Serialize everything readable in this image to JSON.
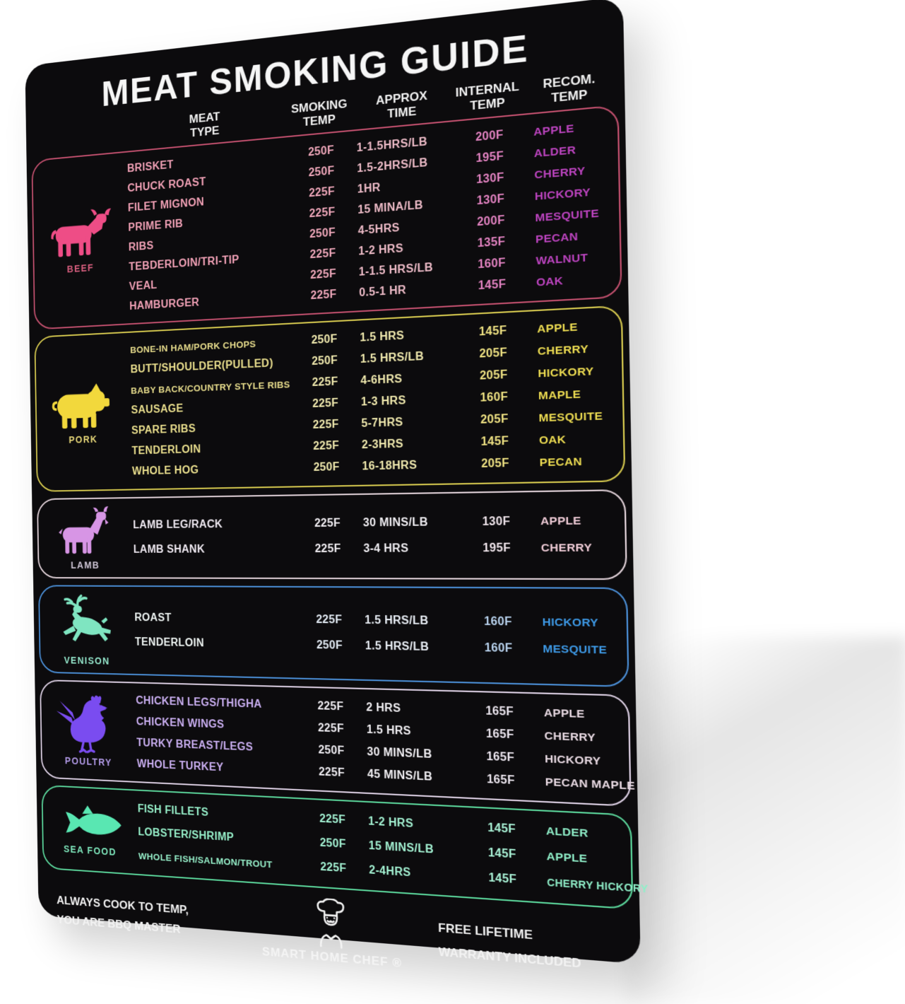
{
  "title": "MEAT SMOKING GUIDE",
  "header": {
    "cols": [
      {
        "line1": "MEAT",
        "line2": "TYPE"
      },
      {
        "line1": "SMOKING",
        "line2": "TEMP"
      },
      {
        "line1": "APPROX",
        "line2": "TIME"
      },
      {
        "line1": "INTERNAL",
        "line2": "TEMP"
      },
      {
        "line1": "RECOM.",
        "line2": "TEMP"
      }
    ]
  },
  "sections": [
    {
      "id": "beef",
      "label": "BEEF",
      "icon": "cow-icon",
      "colors": {
        "border": "#c2506e",
        "icon": "#ee4d86",
        "label": "#d95f7f",
        "meat": "#f0a0b5",
        "smoking": "#f0a8bb",
        "time": "#eebcc8",
        "internal": "#e383c2",
        "wood": "#bd44c0"
      },
      "rows": [
        {
          "meat": "BRISKET",
          "smoking": "250F",
          "time": "1-1.5HRS/LB",
          "internal": "200F",
          "wood": "APPLE"
        },
        {
          "meat": "CHUCK ROAST",
          "smoking": "250F",
          "time": "1.5-2HRS/LB",
          "internal": "195F",
          "wood": "ALDER"
        },
        {
          "meat": "FILET MIGNON",
          "smoking": "225F",
          "time": "1HR",
          "internal": "130F",
          "wood": "CHERRY"
        },
        {
          "meat": "PRIME RIB",
          "smoking": "225F",
          "time": "15 MINA/LB",
          "internal": "130F",
          "wood": "HICKORY"
        },
        {
          "meat": "RIBS",
          "smoking": "250F",
          "time": "4-5HRS",
          "internal": "200F",
          "wood": "MESQUITE"
        },
        {
          "meat": "TEBDERLOIN/TRI-TIP",
          "smoking": "225F",
          "time": "1-2 HRS",
          "internal": "135F",
          "wood": "PECAN"
        },
        {
          "meat": "VEAL",
          "smoking": "225F",
          "time": "1-1.5 HRS/LB",
          "internal": "160F",
          "wood": "WALNUT"
        },
        {
          "meat": "HAMBURGER",
          "smoking": "225F",
          "time": "0.5-1 HR",
          "internal": "145F",
          "wood": "OAK"
        }
      ]
    },
    {
      "id": "pork",
      "label": "PORK",
      "icon": "pig-icon",
      "colors": {
        "border": "#d6c94f",
        "icon": "#f2d83c",
        "label": "#e6d678",
        "meat": "#e9de8d",
        "smoking": "#f0e9ae",
        "time": "#f0e9ae",
        "internal": "#efe283",
        "wood": "#eedd52"
      },
      "rows": [
        {
          "meat": "BONE-IN HAM/PORK CHOPS",
          "smoking": "250F",
          "time": "1.5 HRS",
          "internal": "145F",
          "wood": "APPLE"
        },
        {
          "meat": "BUTT/SHOULDER(PULLED)",
          "smoking": "250F",
          "time": "1.5 HRS/LB",
          "internal": "205F",
          "wood": "CHERRY"
        },
        {
          "meat": "BABY BACK/COUNTRY STYLE RIBS",
          "smoking": "225F",
          "time": "4-6HRS",
          "internal": "205F",
          "wood": "HICKORY"
        },
        {
          "meat": "SAUSAGE",
          "smoking": "225F",
          "time": "1-3 HRS",
          "internal": "160F",
          "wood": "MAPLE"
        },
        {
          "meat": "SPARE RIBS",
          "smoking": "225F",
          "time": "5-7HRS",
          "internal": "205F",
          "wood": "MESQUITE"
        },
        {
          "meat": "TENDERLOIN",
          "smoking": "225F",
          "time": "2-3HRS",
          "internal": "145F",
          "wood": "OAK"
        },
        {
          "meat": "WHOLE HOG",
          "smoking": "250F",
          "time": "16-18HRS",
          "internal": "205F",
          "wood": "PECAN"
        }
      ]
    },
    {
      "id": "lamb",
      "label": "LAMB",
      "icon": "sheep-icon",
      "colors": {
        "border": "#e3d3da",
        "icon": "#d795e5",
        "label": "#cfc6d6",
        "meat": "#efe9f1",
        "smoking": "#f2eff3",
        "time": "#f0eef2",
        "internal": "#f0e5eb",
        "wood": "#f1cdd8"
      },
      "rows": [
        {
          "meat": "LAMB LEG/RACK",
          "smoking": "225F",
          "time": "30 MINS/LB",
          "internal": "130F",
          "wood": "APPLE"
        },
        {
          "meat": "LAMB SHANK",
          "smoking": "225F",
          "time": "3-4 HRS",
          "internal": "195F",
          "wood": "CHERRY"
        }
      ]
    },
    {
      "id": "venison",
      "label": "VENISON",
      "icon": "deer-icon",
      "colors": {
        "border": "#4b8fd7",
        "icon": "#7fe5c1",
        "label": "#94e6cb",
        "meat": "#edf3f1",
        "smoking": "#e3ebf4",
        "time": "#e9eef5",
        "internal": "#b9d3ee",
        "wood": "#3e9ae7"
      },
      "rows": [
        {
          "meat": "ROAST",
          "smoking": "225F",
          "time": "1.5 HRS/LB",
          "internal": "160F",
          "wood": "HICKORY"
        },
        {
          "meat": "TENDERLOIN",
          "smoking": "250F",
          "time": "1.5 HRS/LB",
          "internal": "160F",
          "wood": "MESQUITE"
        }
      ]
    },
    {
      "id": "poultry",
      "label": "POULTRY",
      "icon": "hen-icon",
      "colors": {
        "border": "#ddd0e4",
        "icon": "#7a4cf0",
        "label": "#b199e6",
        "meat": "#c9aef0",
        "smoking": "#efedf2",
        "time": "#f2f0f4",
        "internal": "#ece6ef",
        "wood": "#eadbe4"
      },
      "rows": [
        {
          "meat": "CHICKEN LEGS/THIGHA",
          "smoking": "225F",
          "time": "2 HRS",
          "internal": "165F",
          "wood": "APPLE"
        },
        {
          "meat": "CHICKEN WINGS",
          "smoking": "225F",
          "time": "1.5 HRS",
          "internal": "165F",
          "wood": "CHERRY"
        },
        {
          "meat": "TURKY BREAST/LEGS",
          "smoking": "250F",
          "time": "30 MINS/LB",
          "internal": "165F",
          "wood": "HICKORY"
        },
        {
          "meat": "WHOLE TURKEY",
          "smoking": "225F",
          "time": "45 MINS/LB",
          "internal": "165F",
          "wood": "PECAN MAPLE"
        }
      ]
    },
    {
      "id": "seafood",
      "label": "SEA FOOD",
      "icon": "fish-icon",
      "colors": {
        "border": "#5bd69b",
        "icon": "#59e7b2",
        "label": "#7fe8bd",
        "meat": "#96efc9",
        "smoking": "#a3f1d2",
        "time": "#a3f1d2",
        "internal": "#a9f2d6",
        "wood": "#8feec8"
      },
      "rows": [
        {
          "meat": "FISH FILLETS",
          "smoking": "225F",
          "time": "1-2 HRS",
          "internal": "145F",
          "wood": "ALDER"
        },
        {
          "meat": "LOBSTER/SHRIMP",
          "smoking": "250F",
          "time": "15 MINS/LB",
          "internal": "145F",
          "wood": "APPLE"
        },
        {
          "meat": "WHOLE FISH/SALMON/TROUT",
          "smoking": "225F",
          "time": "2-4HRS",
          "internal": "145F",
          "wood": "CHERRY HICKORY"
        }
      ]
    }
  ],
  "footer": {
    "note_line1": "ALWAYS COOK TO TEMP,",
    "note_line2": "YOU ARE BBQ MASTER",
    "brand": "SMART HOME CHEF ®",
    "warranty_line1": "FREE LIFETIME",
    "warranty_line2": "WARRANTY INCLUDED"
  },
  "sign_background": "#0c0b0d",
  "page_background": "#ffffff"
}
